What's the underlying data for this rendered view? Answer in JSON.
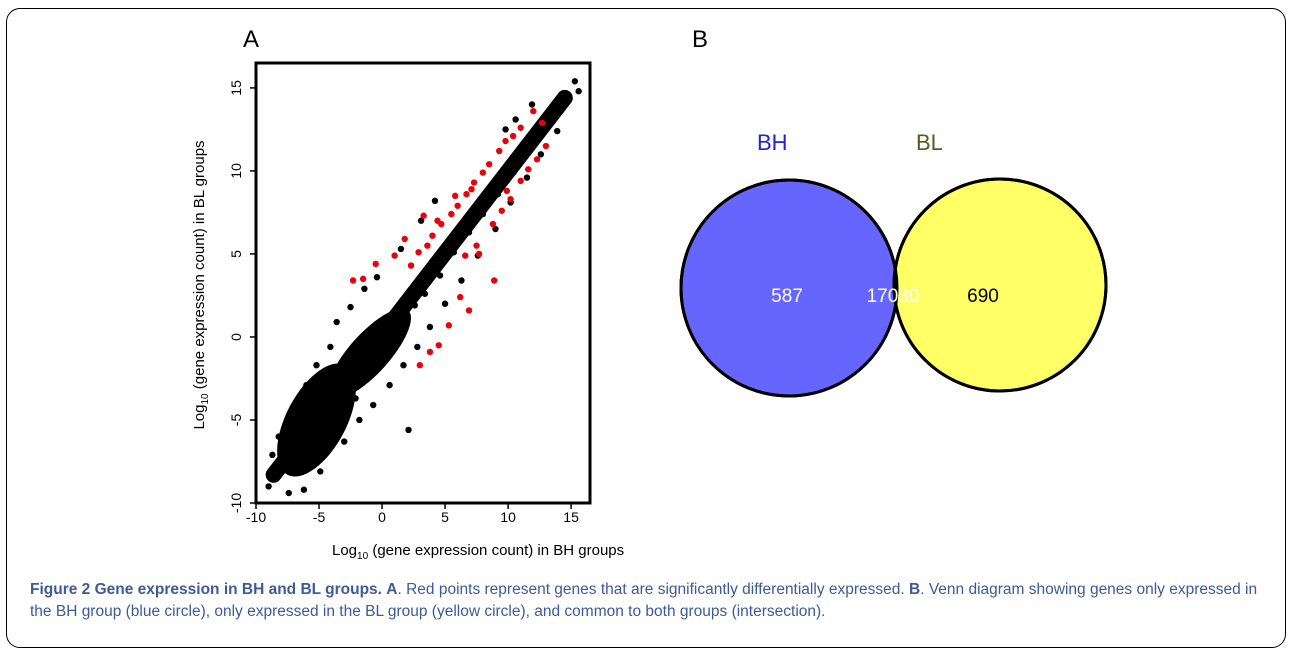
{
  "panel_a_label": "A",
  "panel_b_label": "B",
  "caption": {
    "heading": "Figure 2 Gene expression in BH and BL groups.",
    "a_key": "A",
    "a_text": ". Red points represent genes that are significantly differentially expressed. ",
    "b_key": "B",
    "b_text": ". Venn diagram showing genes only expressed in the BH group (blue circle), only expressed in the BL group (yellow circle), and common to both groups (intersection)."
  },
  "chart_data": [
    {
      "type": "scatter",
      "title": "",
      "xlabel_prefix": "Log",
      "xlabel_sub": "10",
      "xlabel_rest": "(gene expression count) in BH groups",
      "ylabel_prefix": "Log",
      "ylabel_sub": "10",
      "ylabel_rest": "(gene expression count) in BL groups",
      "xlim": [
        -10,
        16.5
      ],
      "ylim": [
        -10,
        16.5
      ],
      "xticks": [
        -10,
        -5,
        0,
        5,
        10,
        15
      ],
      "yticks": [
        -10,
        -5,
        0,
        5,
        10,
        15
      ],
      "grid": false,
      "series": [
        {
          "color": "#000000",
          "points": [
            [
              15.3,
              15.4
            ],
            [
              15.6,
              14.8
            ],
            [
              14.2,
              14.3
            ],
            [
              13.6,
              13.6
            ],
            [
              12.9,
              13.2
            ],
            [
              12.3,
              12.3
            ],
            [
              11.5,
              11.7
            ],
            [
              10.8,
              11.0
            ],
            [
              10.1,
              10.4
            ],
            [
              9.5,
              9.6
            ],
            [
              8.8,
              8.9
            ],
            [
              8.1,
              8.3
            ],
            [
              7.5,
              7.6
            ],
            [
              6.8,
              7.0
            ],
            [
              6.2,
              6.3
            ],
            [
              5.6,
              5.7
            ],
            [
              4.9,
              5.0
            ],
            [
              4.3,
              4.4
            ],
            [
              3.6,
              3.7
            ],
            [
              3.0,
              3.1
            ],
            [
              2.4,
              2.4
            ],
            [
              1.7,
              1.8
            ],
            [
              1.1,
              1.2
            ],
            [
              0.4,
              0.5
            ],
            [
              -0.2,
              -0.1
            ],
            [
              -0.9,
              -0.8
            ],
            [
              -1.5,
              -1.4
            ],
            [
              -2.2,
              -2.1
            ],
            [
              -2.8,
              -2.7
            ],
            [
              -3.5,
              -3.4
            ],
            [
              -4.1,
              -4.0
            ],
            [
              -4.8,
              -4.7
            ],
            [
              -5.4,
              -5.3
            ],
            [
              -6.1,
              -5.9
            ],
            [
              -6.7,
              -6.6
            ],
            [
              -7.4,
              -7.2
            ],
            [
              -8.0,
              -7.9
            ],
            [
              -8.6,
              -8.3
            ],
            [
              -9.0,
              -9.0
            ],
            [
              -7.4,
              -9.4
            ],
            [
              -6.2,
              -9.2
            ],
            [
              -4.9,
              -8.1
            ],
            [
              -8.7,
              -7.1
            ],
            [
              -8.2,
              -6.0
            ],
            [
              -7.3,
              -4.6
            ],
            [
              -6.0,
              -2.9
            ],
            [
              -5.2,
              -1.7
            ],
            [
              -4.1,
              -0.6
            ],
            [
              -3.6,
              0.9
            ],
            [
              -2.5,
              1.8
            ],
            [
              -1.4,
              2.9
            ],
            [
              -0.4,
              3.6
            ],
            [
              1.5,
              5.3
            ],
            [
              3.1,
              7.0
            ],
            [
              4.2,
              8.2
            ],
            [
              -3.0,
              -6.3
            ],
            [
              -1.8,
              -5.0
            ],
            [
              -0.7,
              -4.1
            ],
            [
              0.6,
              -2.9
            ],
            [
              1.7,
              -1.7
            ],
            [
              2.8,
              -0.6
            ],
            [
              3.8,
              0.6
            ],
            [
              5.0,
              2.0
            ],
            [
              6.3,
              3.4
            ],
            [
              7.6,
              4.9
            ],
            [
              9.0,
              6.5
            ],
            [
              10.2,
              8.1
            ],
            [
              11.5,
              9.6
            ],
            [
              12.6,
              11.0
            ],
            [
              13.9,
              12.4
            ],
            [
              2.1,
              -5.6
            ],
            [
              9.8,
              12.5
            ],
            [
              10.6,
              13.1
            ],
            [
              11.9,
              14.0
            ],
            [
              -6.6,
              -7.8
            ],
            [
              -5.8,
              -6.8
            ],
            [
              -4.6,
              -5.9
            ],
            [
              -3.9,
              -3.2
            ],
            [
              -2.1,
              -3.7
            ],
            [
              -1.1,
              -1.5
            ],
            [
              0.1,
              -0.7
            ],
            [
              1.3,
              0.9
            ],
            [
              2.6,
              1.9
            ],
            [
              3.4,
              2.6
            ],
            [
              4.6,
              3.7
            ],
            [
              5.7,
              5.1
            ],
            [
              6.9,
              6.3
            ],
            [
              8.0,
              7.4
            ],
            [
              9.2,
              8.6
            ],
            [
              10.4,
              9.9
            ],
            [
              11.6,
              11.1
            ]
          ]
        },
        {
          "color": "#e8000b",
          "points": [
            [
              2.3,
              4.3
            ],
            [
              2.9,
              5.1
            ],
            [
              3.6,
              5.5
            ],
            [
              4.0,
              6.1
            ],
            [
              4.7,
              6.8
            ],
            [
              5.5,
              7.4
            ],
            [
              6.0,
              7.9
            ],
            [
              6.7,
              8.6
            ],
            [
              7.3,
              9.3
            ],
            [
              8.0,
              9.9
            ],
            [
              8.5,
              10.4
            ],
            [
              9.3,
              11.2
            ],
            [
              9.8,
              11.8
            ],
            [
              10.4,
              12.1
            ],
            [
              11.0,
              12.6
            ],
            [
              12.0,
              13.6
            ],
            [
              3.3,
              7.3
            ],
            [
              5.8,
              8.5
            ],
            [
              7.1,
              8.9
            ],
            [
              -1.5,
              3.5
            ],
            [
              -2.3,
              3.4
            ],
            [
              -0.5,
              4.4
            ],
            [
              1.0,
              4.9
            ],
            [
              1.8,
              5.9
            ],
            [
              4.4,
              7.0
            ],
            [
              8.8,
              6.8
            ],
            [
              9.5,
              7.6
            ],
            [
              10.2,
              8.3
            ],
            [
              11.0,
              9.4
            ],
            [
              11.6,
              10.1
            ],
            [
              12.3,
              10.7
            ],
            [
              13.0,
              11.5
            ],
            [
              7.5,
              5.5
            ],
            [
              6.6,
              4.9
            ],
            [
              8.9,
              3.4
            ],
            [
              6.9,
              1.6
            ],
            [
              6.2,
              2.4
            ],
            [
              5.3,
              0.7
            ],
            [
              4.5,
              -0.5
            ],
            [
              3.8,
              -0.9
            ],
            [
              12.7,
              12.9
            ],
            [
              3.0,
              -1.7
            ],
            [
              9.9,
              8.8
            ],
            [
              7.7,
              5.0
            ]
          ]
        }
      ]
    },
    {
      "type": "venn",
      "sets": [
        {
          "name": "BH",
          "only": "587",
          "color": "#6666ff",
          "label_color": "#2323c8"
        },
        {
          "name": "BL",
          "only": "690",
          "color": "#ffff66",
          "label_color": "#5a5a1e"
        }
      ],
      "intersection": "17030",
      "intersection_color": "#bdbd8b"
    }
  ]
}
